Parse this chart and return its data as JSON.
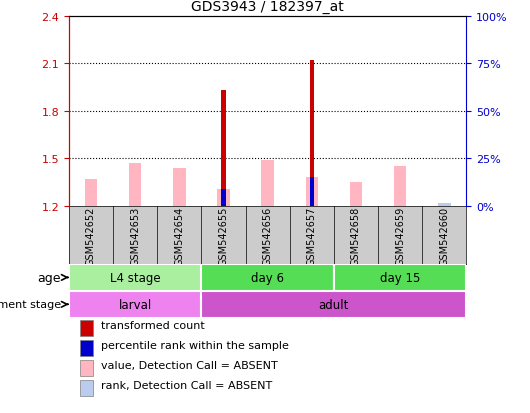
{
  "title": "GDS3943 / 182397_at",
  "samples": [
    "GSM542652",
    "GSM542653",
    "GSM542654",
    "GSM542655",
    "GSM542656",
    "GSM542657",
    "GSM542658",
    "GSM542659",
    "GSM542660"
  ],
  "red_bars": [
    1.2,
    1.2,
    1.2,
    1.93,
    1.2,
    2.12,
    1.2,
    1.2,
    1.2
  ],
  "pink_bars": [
    1.37,
    1.47,
    1.44,
    1.31,
    1.49,
    1.38,
    1.35,
    1.45,
    1.2
  ],
  "blue_bars": [
    1.2,
    1.2,
    1.2,
    1.31,
    1.2,
    1.38,
    1.2,
    1.2,
    1.2
  ],
  "light_blue_bars": [
    1.215,
    1.215,
    1.215,
    1.215,
    1.225,
    1.215,
    1.215,
    1.215,
    1.22
  ],
  "ylim_left": [
    1.2,
    2.4
  ],
  "ylim_right": [
    0,
    100
  ],
  "yticks_left": [
    1.2,
    1.5,
    1.8,
    2.1,
    2.4
  ],
  "yticks_right": [
    0,
    25,
    50,
    75,
    100
  ],
  "bar_bottom": 1.2,
  "age_groups": [
    {
      "label": "L4 stage",
      "start": 0,
      "end": 3,
      "color": "#AAEEA0"
    },
    {
      "label": "day 6",
      "start": 3,
      "end": 6,
      "color": "#55DD55"
    },
    {
      "label": "day 15",
      "start": 6,
      "end": 9,
      "color": "#55DD55"
    }
  ],
  "dev_groups": [
    {
      "label": "larval",
      "start": 0,
      "end": 3,
      "color": "#EE82EE"
    },
    {
      "label": "adult",
      "start": 3,
      "end": 9,
      "color": "#CC55CC"
    }
  ],
  "legend_items": [
    {
      "color": "#CC0000",
      "label": "transformed count"
    },
    {
      "color": "#0000CC",
      "label": "percentile rank within the sample"
    },
    {
      "color": "#FFB6C1",
      "label": "value, Detection Call = ABSENT"
    },
    {
      "color": "#BBCCEE",
      "label": "rank, Detection Call = ABSENT"
    }
  ],
  "age_label": "age",
  "dev_label": "development stage",
  "bar_color_red": "#CC0000",
  "bar_color_pink": "#FFB6C1",
  "bar_color_blue": "#0000CC",
  "bar_color_light_blue": "#BBCCEE",
  "sample_bg_color": "#CCCCCC",
  "axis_left_color": "#CC0000",
  "axis_right_color": "#0000CC",
  "pink_bar_width": 0.28,
  "red_bar_width": 0.1,
  "blue_bar_width": 0.1,
  "light_blue_bar_width": 0.28
}
